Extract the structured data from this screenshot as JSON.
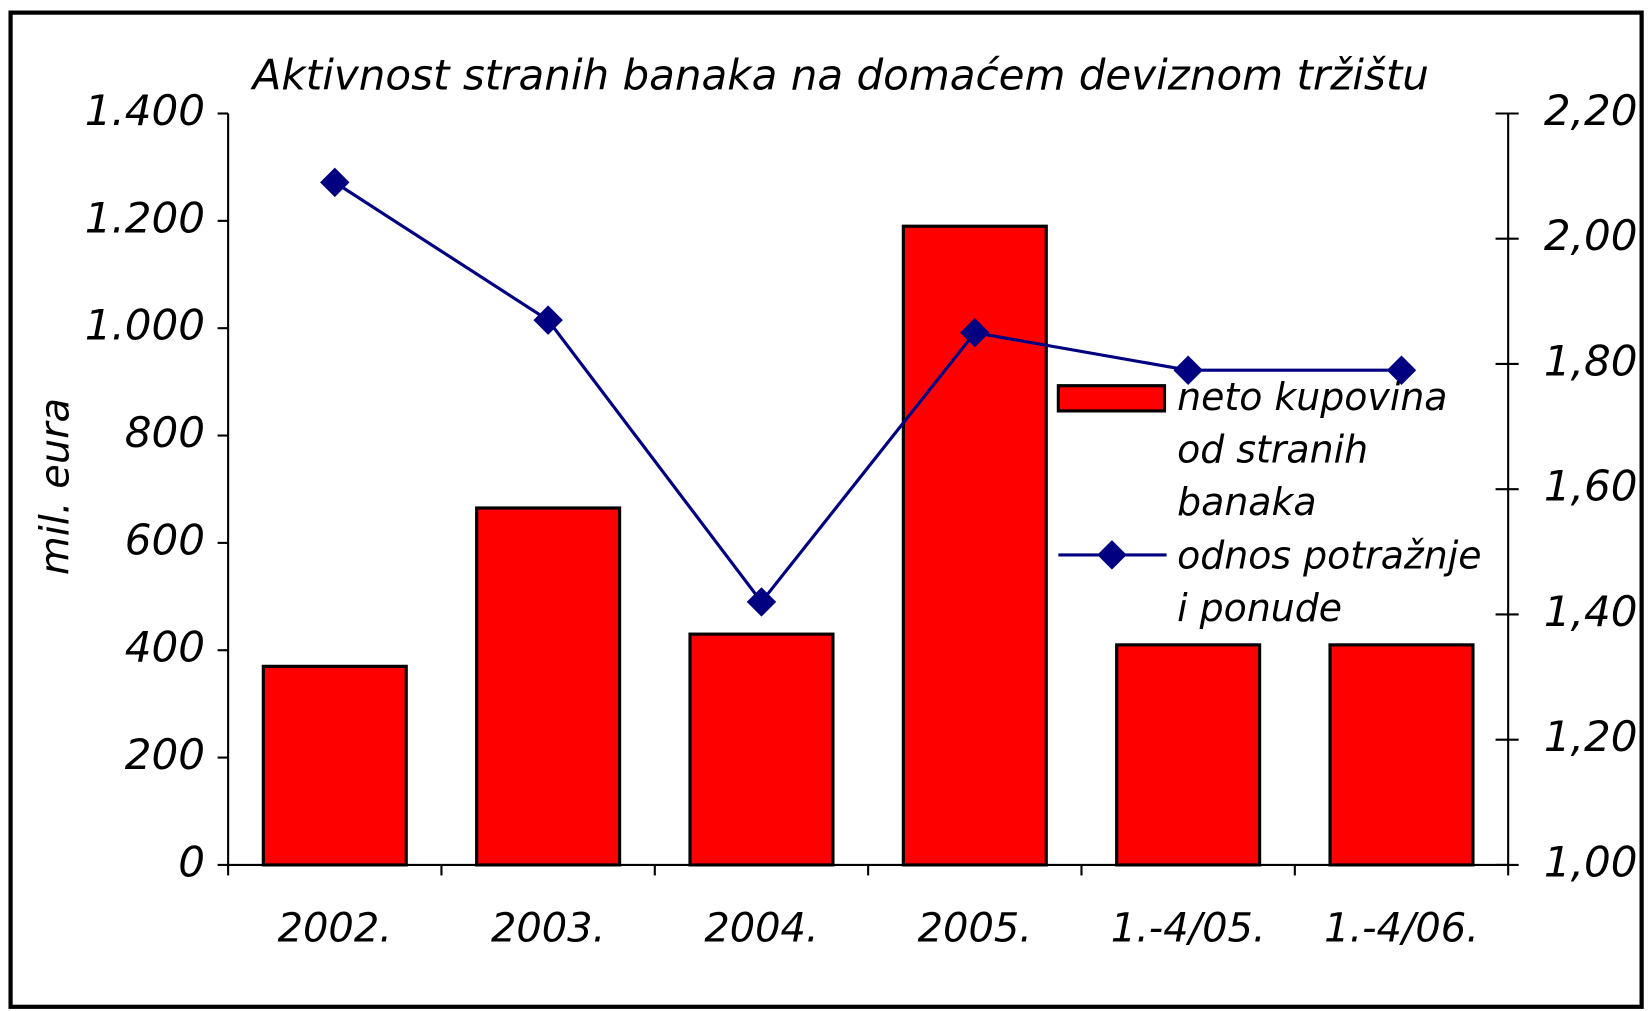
{
  "chart_data": {
    "type": "bar-line",
    "title": "Aktivnost stranih banaka na domaćem deviznom tržištu",
    "y_label": "mil. eura",
    "categories": [
      "2002.",
      "2003.",
      "2004.",
      "2005.",
      "1.-4/05.",
      "1.-4/06."
    ],
    "series": [
      {
        "name": "neto kupovina od stranih banaka",
        "type": "bar",
        "color": "#ff0000",
        "values": [
          370,
          665,
          430,
          1190,
          410,
          410
        ]
      },
      {
        "name": "odnos potražnje i ponude",
        "type": "line",
        "color": "#000080",
        "axis": "y2",
        "values": [
          2.09,
          1.87,
          1.42,
          1.85,
          1.79,
          1.79
        ]
      }
    ],
    "ylim": [
      0,
      1400
    ],
    "yticks": [
      0,
      200,
      400,
      600,
      800,
      {
        "value": 1000,
        "label": "1.000"
      },
      {
        "value": 1200,
        "label": "1.200"
      },
      {
        "value": 1400,
        "label": "1.400"
      }
    ],
    "y2lim": [
      1.0,
      2.2
    ],
    "y2ticks": [
      {
        "value": 1.0,
        "label": "1,00"
      },
      {
        "value": 1.2,
        "label": "1,20"
      },
      {
        "value": 1.4,
        "label": "1,40"
      },
      {
        "value": 1.6,
        "label": "1,60"
      },
      {
        "value": 1.8,
        "label": "1,80"
      },
      {
        "value": 2.0,
        "label": "2,00"
      },
      {
        "value": 2.2,
        "label": "2,20"
      }
    ],
    "legend": "right"
  }
}
